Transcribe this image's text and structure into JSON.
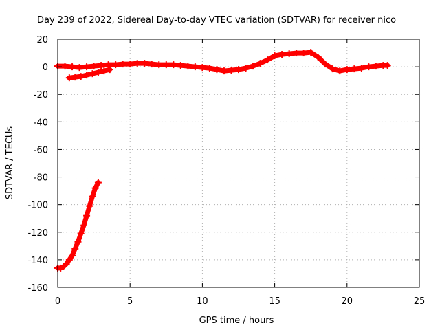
{
  "chart_data": {
    "type": "scatter",
    "title": "Day 239 of 2022, Sidereal Day-to-day VTEC variation (SDTVAR) for receiver nico",
    "xlabel": "GPS time / hours",
    "ylabel": "SDTVAR / TECUs",
    "xlim": [
      0,
      25
    ],
    "ylim": [
      -160,
      20
    ],
    "xticks": [
      "0",
      "5",
      "10",
      "15",
      "20",
      "25"
    ],
    "yticks": [
      "20",
      "0",
      "-20",
      "-40",
      "-60",
      "-80",
      "-100",
      "-120",
      "-140",
      "-160"
    ],
    "grid": true,
    "marker": "plus",
    "color": "#ff0000",
    "series": [
      {
        "name": "main",
        "x": [
          0.0,
          0.5,
          1.0,
          1.5,
          2.0,
          2.5,
          3.0,
          3.5,
          4.0,
          4.5,
          5.0,
          5.5,
          6.0,
          6.5,
          7.0,
          7.5,
          8.0,
          8.5,
          9.0,
          9.5,
          10.0,
          10.5,
          11.0,
          11.5,
          12.0,
          12.5,
          13.0,
          13.5,
          14.0,
          14.5,
          15.0,
          15.5,
          16.0,
          16.5,
          17.0,
          17.5,
          18.0,
          18.5,
          19.0,
          19.5,
          20.0,
          20.5,
          21.0,
          21.5,
          22.0,
          22.5,
          22.8
        ],
        "y": [
          0.5,
          0.5,
          0.0,
          -0.5,
          0.0,
          0.5,
          1.0,
          1.5,
          1.5,
          2.0,
          2.0,
          2.5,
          2.5,
          2.0,
          1.5,
          1.5,
          1.5,
          1.0,
          0.5,
          0.0,
          -0.5,
          -1.0,
          -2.0,
          -3.0,
          -2.5,
          -2.0,
          -1.0,
          0.5,
          2.5,
          5.0,
          8.0,
          9.0,
          9.5,
          10.0,
          10.0,
          10.5,
          7.0,
          2.0,
          -1.5,
          -3.0,
          -2.0,
          -1.5,
          -1.0,
          0.0,
          0.5,
          1.0,
          1.0
        ]
      },
      {
        "name": "lower-start",
        "x": [
          0.8,
          1.2,
          1.6,
          2.0,
          2.4,
          2.8,
          3.2,
          3.6
        ],
        "y": [
          -8.0,
          -7.5,
          -7.0,
          -6.0,
          -5.0,
          -4.0,
          -3.0,
          -2.0
        ]
      },
      {
        "name": "descending-arc",
        "x": [
          0.0,
          0.2,
          0.4,
          0.6,
          0.8,
          1.0,
          1.2,
          1.4,
          1.6,
          1.8,
          2.0,
          2.2,
          2.4,
          2.6,
          2.8
        ],
        "y": [
          -146.0,
          -146.0,
          -145.0,
          -143.0,
          -140.0,
          -137.0,
          -132.0,
          -127.0,
          -121.0,
          -115.0,
          -108.0,
          -101.0,
          -94.0,
          -88.0,
          -84.0
        ]
      }
    ]
  }
}
